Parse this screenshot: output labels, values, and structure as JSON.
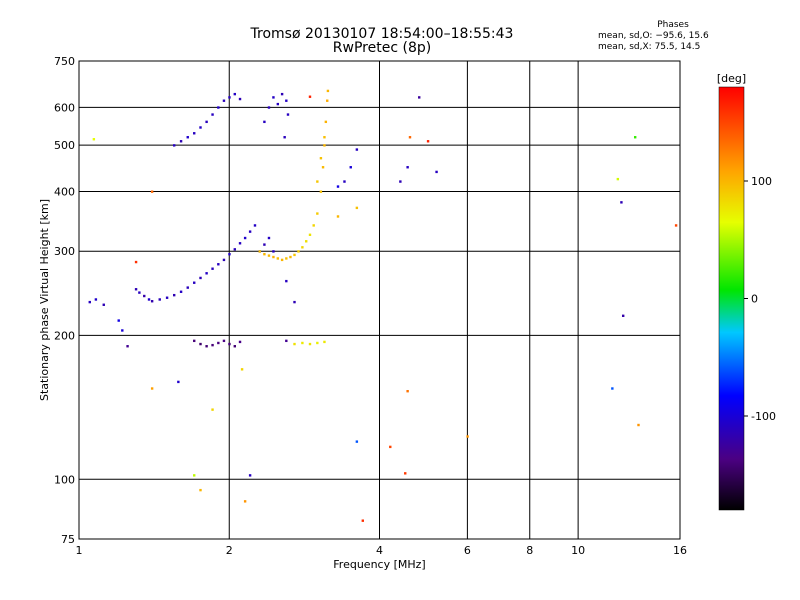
{
  "header": {
    "title_line1": "Tromsø 20130107 18:54:00–18:55:43",
    "title_line2": "RwPretec (8p)"
  },
  "stats": {
    "heading": "Phases",
    "line_o": "mean, sd,O: −95.6, 15.6",
    "line_x": "mean, sd,X:  75.5, 14.5"
  },
  "chart_data": {
    "type": "scatter",
    "xlabel": "Frequency [MHz]",
    "ylabel": "Stationary phase Virtual Height [km]",
    "xscale": "log",
    "yscale": "log",
    "xlim": [
      1,
      16
    ],
    "ylim": [
      75,
      750
    ],
    "xticks": [
      1,
      2,
      4,
      6,
      8,
      10,
      16
    ],
    "yticks": [
      75,
      100,
      200,
      300,
      400,
      500,
      600,
      750
    ],
    "grid": true,
    "colorbar": {
      "label": "[deg]",
      "range": [
        -180,
        180
      ],
      "ticks": [
        100,
        0,
        -100
      ]
    },
    "points": [
      [
        1.05,
        235,
        -110
      ],
      [
        1.08,
        238,
        -105
      ],
      [
        1.12,
        232,
        -115
      ],
      [
        1.2,
        215,
        -95
      ],
      [
        1.22,
        205,
        -100
      ],
      [
        1.25,
        190,
        -130
      ],
      [
        1.3,
        250,
        -115
      ],
      [
        1.32,
        246,
        -110
      ],
      [
        1.35,
        242,
        -120
      ],
      [
        1.38,
        238,
        -105
      ],
      [
        1.4,
        236,
        -118
      ],
      [
        1.45,
        238,
        -112
      ],
      [
        1.5,
        240,
        -110
      ],
      [
        1.55,
        243,
        -116
      ],
      [
        1.6,
        247,
        -108
      ],
      [
        1.65,
        252,
        -112
      ],
      [
        1.7,
        258,
        -110
      ],
      [
        1.75,
        264,
        -115
      ],
      [
        1.8,
        270,
        -108
      ],
      [
        1.85,
        276,
        -112
      ],
      [
        1.9,
        282,
        -110
      ],
      [
        1.95,
        288,
        -114
      ],
      [
        2.0,
        296,
        -108
      ],
      [
        2.05,
        303,
        -112
      ],
      [
        2.1,
        312,
        -110
      ],
      [
        2.15,
        320,
        -105
      ],
      [
        2.2,
        330,
        -110
      ],
      [
        2.25,
        340,
        -108
      ],
      [
        1.55,
        500,
        -110
      ],
      [
        1.6,
        510,
        -115
      ],
      [
        1.65,
        520,
        -105
      ],
      [
        1.7,
        530,
        -110
      ],
      [
        1.75,
        545,
        -108
      ],
      [
        1.8,
        560,
        -112
      ],
      [
        1.85,
        580,
        -110
      ],
      [
        1.9,
        600,
        -106
      ],
      [
        1.95,
        620,
        -112
      ],
      [
        2.0,
        630,
        -110
      ],
      [
        2.05,
        640,
        -108
      ],
      [
        2.1,
        625,
        -115
      ],
      [
        2.35,
        560,
        -110
      ],
      [
        2.4,
        600,
        -112
      ],
      [
        2.45,
        630,
        -108
      ],
      [
        2.5,
        610,
        -110
      ],
      [
        2.55,
        640,
        -115
      ],
      [
        2.6,
        620,
        -108
      ],
      [
        2.62,
        580,
        -110
      ],
      [
        2.58,
        520,
        -112
      ],
      [
        2.3,
        300,
        -110
      ],
      [
        2.35,
        310,
        -115
      ],
      [
        2.4,
        320,
        -108
      ],
      [
        2.45,
        300,
        -110
      ],
      [
        1.7,
        195,
        -140
      ],
      [
        1.75,
        192,
        -145
      ],
      [
        1.8,
        190,
        -142
      ],
      [
        1.85,
        191,
        -140
      ],
      [
        1.9,
        193,
        -138
      ],
      [
        1.95,
        195,
        -136
      ],
      [
        2.0,
        192,
        -140
      ],
      [
        2.05,
        190,
        -142
      ],
      [
        2.1,
        194,
        -135
      ],
      [
        2.3,
        300,
        95
      ],
      [
        2.35,
        296,
        100
      ],
      [
        2.4,
        294,
        98
      ],
      [
        2.45,
        292,
        102
      ],
      [
        2.5,
        290,
        96
      ],
      [
        2.55,
        288,
        100
      ],
      [
        2.6,
        290,
        95
      ],
      [
        2.65,
        292,
        98
      ],
      [
        2.7,
        295,
        92
      ],
      [
        2.75,
        300,
        90
      ],
      [
        2.8,
        306,
        85
      ],
      [
        2.85,
        315,
        80
      ],
      [
        2.9,
        325,
        78
      ],
      [
        2.95,
        340,
        85
      ],
      [
        3.0,
        360,
        90
      ],
      [
        3.05,
        400,
        95
      ],
      [
        3.08,
        450,
        98
      ],
      [
        3.1,
        500,
        100
      ],
      [
        3.12,
        560,
        102
      ],
      [
        3.14,
        620,
        105
      ],
      [
        3.15,
        650,
        100
      ],
      [
        3.1,
        520,
        96
      ],
      [
        3.05,
        470,
        94
      ],
      [
        3.0,
        420,
        92
      ],
      [
        2.7,
        192,
        80
      ],
      [
        2.8,
        193,
        75
      ],
      [
        2.9,
        192,
        78
      ],
      [
        3.0,
        193,
        72
      ],
      [
        3.1,
        194,
        76
      ],
      [
        1.07,
        515,
        65
      ],
      [
        1.4,
        400,
        135
      ],
      [
        1.3,
        285,
        160
      ],
      [
        4.8,
        630,
        -125
      ],
      [
        4.6,
        520,
        135
      ],
      [
        4.55,
        450,
        -110
      ],
      [
        5.2,
        440,
        -110
      ],
      [
        5.0,
        510,
        165
      ],
      [
        4.4,
        420,
        -115
      ],
      [
        3.6,
        490,
        -110
      ],
      [
        3.5,
        450,
        -100
      ],
      [
        3.4,
        420,
        -110
      ],
      [
        3.3,
        410,
        -95
      ],
      [
        3.6,
        370,
        95
      ],
      [
        3.3,
        355,
        100
      ],
      [
        13.0,
        520,
        20
      ],
      [
        12.0,
        425,
        60
      ],
      [
        12.2,
        380,
        -115
      ],
      [
        12.3,
        220,
        -120
      ],
      [
        11.7,
        155,
        -60
      ],
      [
        13.2,
        130,
        115
      ],
      [
        15.7,
        340,
        150
      ],
      [
        1.4,
        155,
        110
      ],
      [
        1.58,
        160,
        -105
      ],
      [
        1.7,
        102,
        55
      ],
      [
        1.75,
        95,
        100
      ],
      [
        1.85,
        140,
        85
      ],
      [
        2.12,
        170,
        85
      ],
      [
        2.2,
        102,
        -110
      ],
      [
        2.15,
        90,
        115
      ],
      [
        2.6,
        195,
        -130
      ],
      [
        2.7,
        235,
        -115
      ],
      [
        3.6,
        120,
        -60
      ],
      [
        3.7,
        82,
        160
      ],
      [
        4.2,
        117,
        150
      ],
      [
        4.5,
        103,
        155
      ],
      [
        4.55,
        153,
        130
      ],
      [
        6.0,
        123,
        115
      ],
      [
        2.6,
        260,
        -110
      ],
      [
        2.9,
        632,
        165
      ]
    ]
  }
}
